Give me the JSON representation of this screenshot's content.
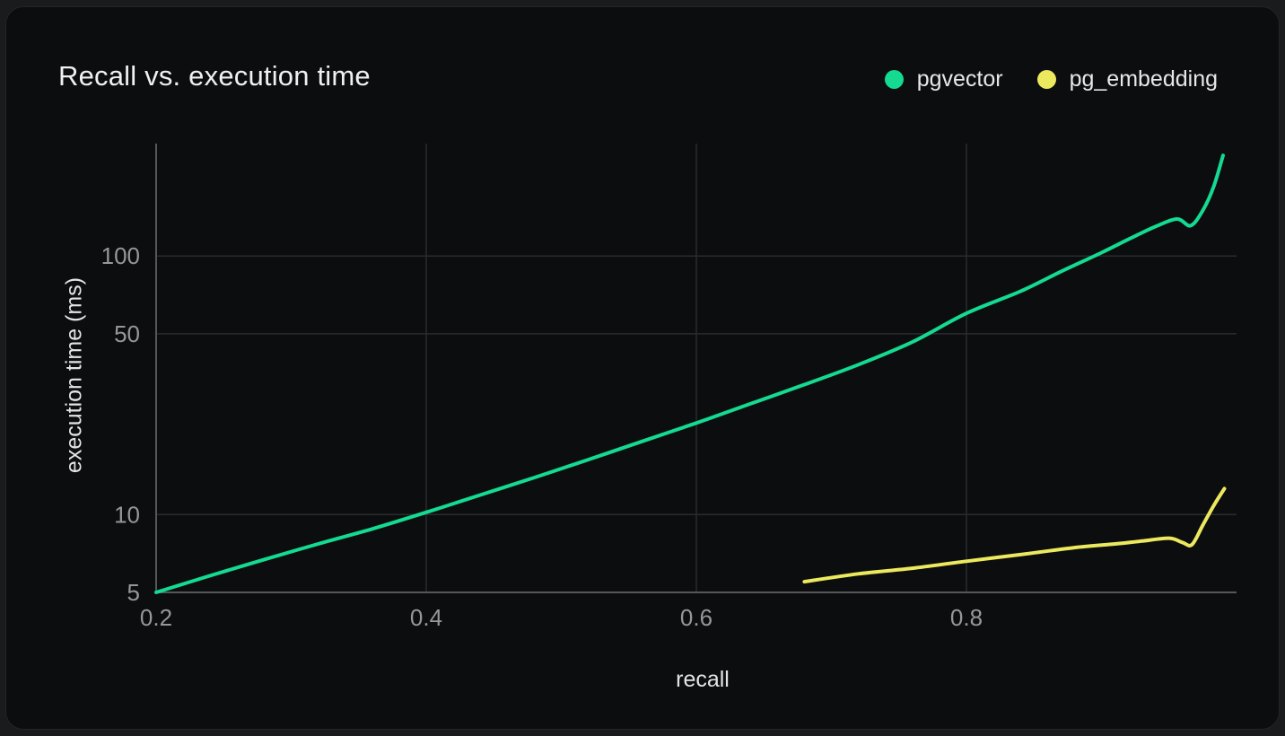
{
  "colors": {
    "page_background": "#1a1b1d",
    "card_background": "#0c0d0e",
    "grid_line": "#2a2b2f",
    "axis_line": "#55575d",
    "tick_text": "#95979c",
    "title_text": "#eef0f1",
    "pgvector_green": "#14da92",
    "pg_embedding_yellow": "#ece95f"
  },
  "chart_data": {
    "type": "line",
    "title": "Recall vs. execution time",
    "xlabel": "recall",
    "ylabel": "execution time (ms)",
    "x_scale": "linear",
    "y_scale": "log",
    "xlim": [
      0.2,
      1.0
    ],
    "ylim": [
      5,
      272
    ],
    "x_ticks": [
      0.2,
      0.4,
      0.6,
      0.8
    ],
    "x_tick_labels": [
      "0.2",
      "0.4",
      "0.6",
      "0.8"
    ],
    "y_ticks": [
      5,
      10,
      50,
      100
    ],
    "y_tick_labels": [
      "5",
      "10",
      "50",
      "100"
    ],
    "grid": true,
    "legend_position": "top-right",
    "series": [
      {
        "name": "pgvector",
        "color": "#14da92",
        "points": [
          [
            0.2,
            5.0
          ],
          [
            0.24,
            5.8
          ],
          [
            0.28,
            6.7
          ],
          [
            0.32,
            7.7
          ],
          [
            0.36,
            8.8
          ],
          [
            0.4,
            10.2
          ],
          [
            0.44,
            11.9
          ],
          [
            0.48,
            13.9
          ],
          [
            0.52,
            16.3
          ],
          [
            0.56,
            19.2
          ],
          [
            0.6,
            22.6
          ],
          [
            0.64,
            26.8
          ],
          [
            0.68,
            31.8
          ],
          [
            0.72,
            38.0
          ],
          [
            0.76,
            46.5
          ],
          [
            0.8,
            60.0
          ],
          [
            0.84,
            73.0
          ],
          [
            0.87,
            87.0
          ],
          [
            0.9,
            103.0
          ],
          [
            0.92,
            116.0
          ],
          [
            0.94,
            130.0
          ],
          [
            0.956,
            139.0
          ],
          [
            0.966,
            131.0
          ],
          [
            0.975,
            150.0
          ],
          [
            0.983,
            185.0
          ],
          [
            0.99,
            245.0
          ]
        ]
      },
      {
        "name": "pg_embedding",
        "color": "#ece95f",
        "points": [
          [
            0.68,
            5.5
          ],
          [
            0.72,
            5.9
          ],
          [
            0.76,
            6.2
          ],
          [
            0.8,
            6.6
          ],
          [
            0.84,
            7.0
          ],
          [
            0.88,
            7.45
          ],
          [
            0.91,
            7.7
          ],
          [
            0.93,
            7.9
          ],
          [
            0.95,
            8.1
          ],
          [
            0.96,
            7.8
          ],
          [
            0.967,
            7.65
          ],
          [
            0.975,
            9.1
          ],
          [
            0.983,
            10.8
          ],
          [
            0.991,
            12.6
          ]
        ]
      }
    ]
  }
}
